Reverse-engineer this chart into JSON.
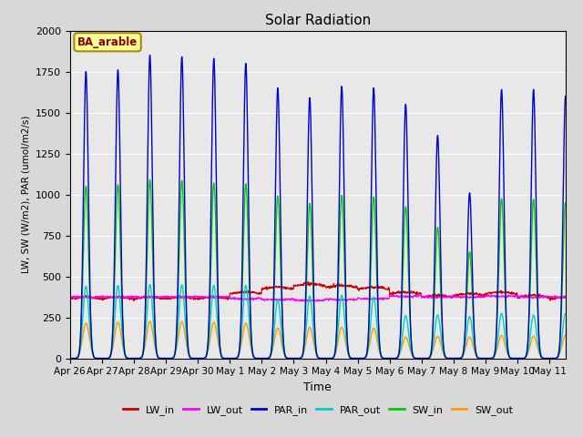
{
  "title": "Solar Radiation",
  "xlabel": "Time",
  "ylabel": "LW, SW (W/m2), PAR (umol/m2/s)",
  "annotation": "BA_arable",
  "ylim": [
    0,
    2000
  ],
  "background_color": "#e8e8e8",
  "legend_entries": [
    "LW_in",
    "LW_out",
    "PAR_in",
    "PAR_out",
    "SW_in",
    "SW_out"
  ],
  "legend_colors": [
    "#cc0000",
    "#ff00ff",
    "#0000cc",
    "#00cccc",
    "#00cc00",
    "#ff9900"
  ],
  "tick_labels": [
    "Apr 26",
    "Apr 27",
    "Apr 28",
    "Apr 29",
    "Apr 30",
    "May 1",
    "May 2",
    "May 3",
    "May 4",
    "May 5",
    "May 6",
    "May 7",
    "May 8",
    "May 9",
    "May 10",
    "May 11"
  ],
  "n_days": 16,
  "dt_hours": 0.25,
  "PAR_in_peaks": [
    1750,
    1760,
    1850,
    1840,
    1830,
    1800,
    1650,
    1590,
    1660,
    1650,
    1550,
    1360,
    1010,
    1640,
    1640,
    1600
  ],
  "SW_in_peaks": [
    1050,
    1060,
    1090,
    1085,
    1070,
    1065,
    990,
    945,
    995,
    985,
    925,
    800,
    650,
    975,
    970,
    950
  ],
  "SW_out_peaks": [
    215,
    220,
    225,
    225,
    220,
    215,
    185,
    190,
    190,
    185,
    130,
    135,
    130,
    140,
    135,
    140
  ],
  "PAR_out_peaks": [
    440,
    445,
    450,
    448,
    446,
    445,
    360,
    380,
    385,
    375,
    260,
    265,
    255,
    275,
    265,
    275
  ],
  "LW_in_base": 360,
  "LW_out_base": 378,
  "daylight_hours": 14,
  "sunrise_hour": 5,
  "colors": {
    "LW_in": "#cc0000",
    "LW_out": "#ff00ff",
    "PAR_in": "#0000cc",
    "PAR_out": "#00cccc",
    "SW_in": "#00cc00",
    "SW_out": "#ff9900"
  }
}
